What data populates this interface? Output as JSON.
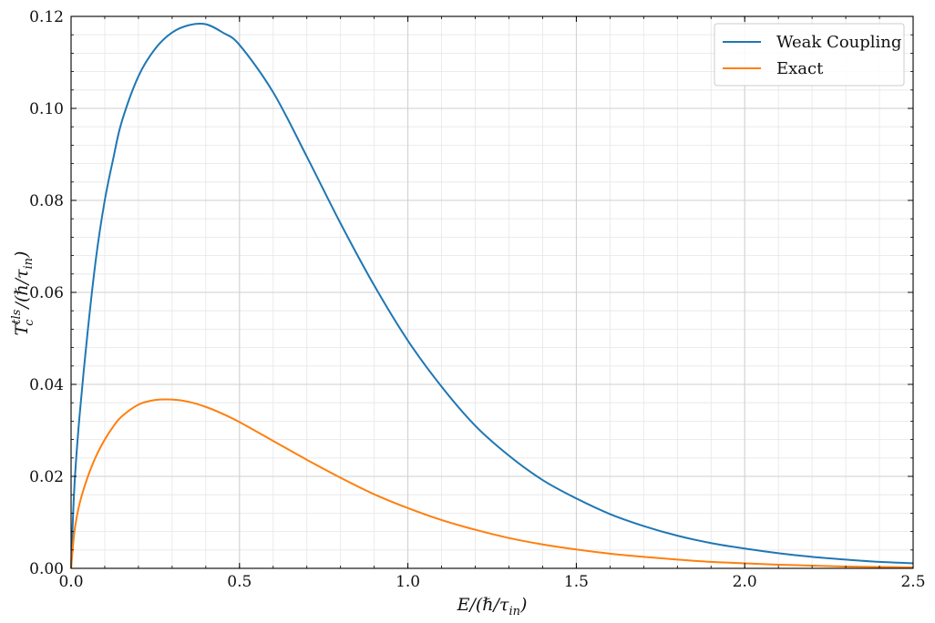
{
  "chart_data": {
    "type": "line",
    "title": "",
    "xlabel": "E/(ℏ/τ_in)",
    "ylabel": "T_c^tls/(ℏ/τ_in)",
    "xlim": [
      0.0,
      2.5
    ],
    "ylim": [
      0.0,
      0.12
    ],
    "x_ticks": [
      "0.0",
      "0.5",
      "1.0",
      "1.5",
      "2.0",
      "2.5"
    ],
    "y_ticks": [
      "0.00",
      "0.02",
      "0.04",
      "0.06",
      "0.08",
      "0.10",
      "0.12"
    ],
    "grid": true,
    "minor_grid": true,
    "legend_position": "top-right",
    "series": [
      {
        "name": "Weak Coupling",
        "color": "#1f77b4",
        "x": [
          0.0,
          0.01,
          0.025,
          0.05,
          0.075,
          0.1,
          0.125,
          0.15,
          0.2,
          0.25,
          0.3,
          0.35,
          0.4,
          0.45,
          0.5,
          0.6,
          0.7,
          0.8,
          0.9,
          1.0,
          1.1,
          1.2,
          1.3,
          1.4,
          1.5,
          1.6,
          1.7,
          1.8,
          1.9,
          2.0,
          2.1,
          2.2,
          2.3,
          2.4,
          2.5
        ],
        "y": [
          0.0,
          0.018,
          0.033,
          0.052,
          0.068,
          0.08,
          0.089,
          0.097,
          0.107,
          0.113,
          0.1165,
          0.1181,
          0.1183,
          0.1165,
          0.1138,
          0.1035,
          0.0895,
          0.075,
          0.0615,
          0.0495,
          0.0395,
          0.031,
          0.0245,
          0.0192,
          0.0152,
          0.0118,
          0.0092,
          0.0071,
          0.0055,
          0.0043,
          0.0033,
          0.0025,
          0.0019,
          0.0014,
          0.0011
        ]
      },
      {
        "name": "Exact",
        "color": "#ff7f0e",
        "x": [
          0.0,
          0.01,
          0.025,
          0.05,
          0.075,
          0.1,
          0.125,
          0.15,
          0.2,
          0.25,
          0.3,
          0.35,
          0.4,
          0.45,
          0.5,
          0.6,
          0.7,
          0.8,
          0.9,
          1.0,
          1.1,
          1.2,
          1.3,
          1.4,
          1.5,
          1.6,
          1.7,
          1.8,
          1.9,
          2.0,
          2.1,
          2.2,
          2.3,
          2.4,
          2.5
        ],
        "y": [
          0.0,
          0.008,
          0.014,
          0.02,
          0.0245,
          0.028,
          0.0308,
          0.033,
          0.0356,
          0.0366,
          0.0367,
          0.0362,
          0.0351,
          0.0336,
          0.0318,
          0.0277,
          0.0236,
          0.0197,
          0.0161,
          0.0131,
          0.0105,
          0.0084,
          0.0066,
          0.0052,
          0.0041,
          0.0032,
          0.0025,
          0.0019,
          0.0014,
          0.0011,
          0.0008,
          0.0006,
          0.0004,
          0.0003,
          0.0002
        ]
      }
    ]
  }
}
